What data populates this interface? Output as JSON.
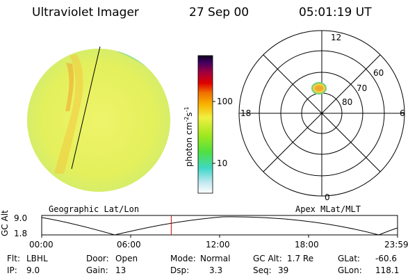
{
  "header": {
    "instrument": "Ultraviolet Imager",
    "date": "27 Sep 00",
    "time": "05:01:19 UT"
  },
  "colorbar": {
    "label_main": "photon cm",
    "label_exp1": "-2",
    "label_mid": "s",
    "label_exp2": "-1",
    "ticks": [
      "100",
      "10"
    ]
  },
  "polar_plot": {
    "mlt_labels": {
      "top": "12",
      "left": "18",
      "right": "6",
      "bottom": "0"
    },
    "lat_labels": [
      "60",
      "70",
      "80"
    ]
  },
  "orbit": {
    "left_label": "Geographic Lat/Lon",
    "right_label": "Apex MLat/MLT",
    "axis_label": "GC Alt",
    "y_ticks": [
      "9.0",
      "1.8"
    ],
    "x_ticks": [
      "00:00",
      "06:00",
      "12:00",
      "18:00",
      "23:59"
    ],
    "current_time_fraction": 0.364
  },
  "status": {
    "flt_label": "Flt:",
    "flt_value": "LBHL",
    "ip_label": "IP:",
    "ip_value": "9.0",
    "door_label": "Door:",
    "door_value": "Open",
    "gain_label": "Gain:",
    "gain_value": "13",
    "mode_label": "Mode:",
    "mode_value": "Normal",
    "dsp_label": "Dsp:",
    "dsp_value": "3.3",
    "gcalt_label": "GC Alt:",
    "gcalt_value": "1.7 Re",
    "seq_label": "Seq:",
    "seq_value": "39",
    "glat_label": "GLat:",
    "glat_value": "-60.6",
    "glon_label": "GLon:",
    "glon_value": "118.1"
  },
  "colors": {
    "disk_base": "#e8f060",
    "aurora": "#f0b030",
    "limb": "#4ad0c0",
    "marker": "#cc0000"
  }
}
